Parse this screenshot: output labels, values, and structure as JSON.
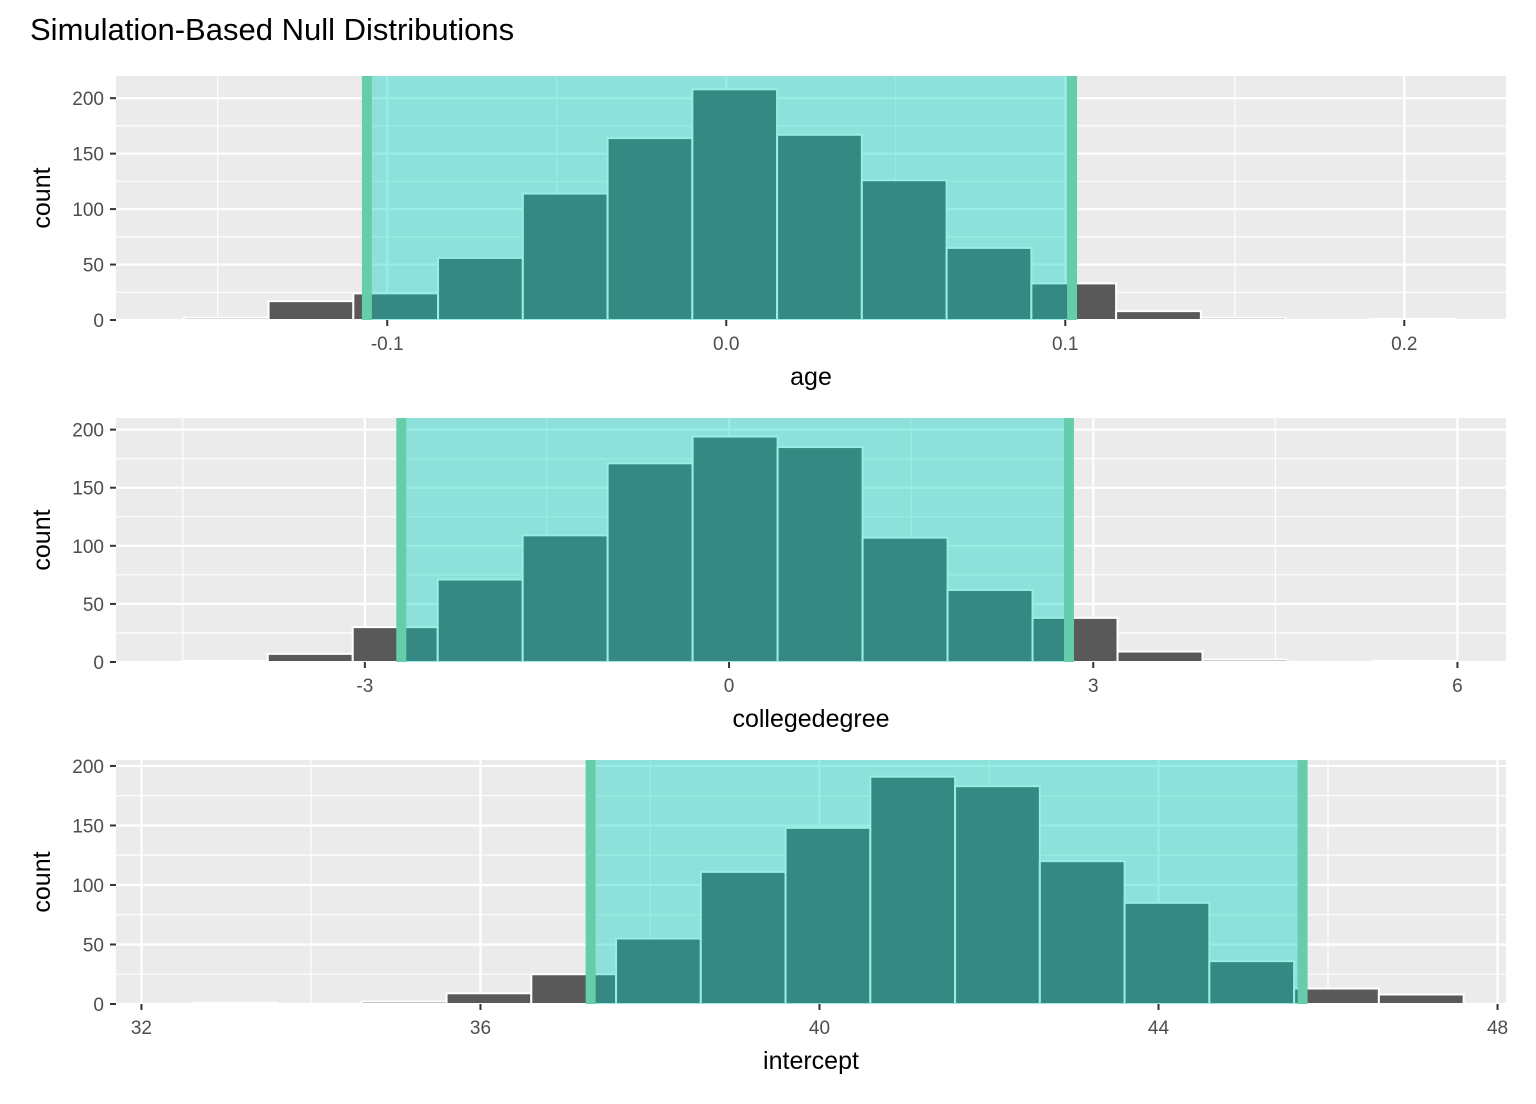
{
  "chart_data": {
    "title": "Simulation-Based Null Distributions",
    "type": "histogram",
    "colors": {
      "panel_background": "#ebebeb",
      "gridline": "#ffffff",
      "bar_fill": "#595959",
      "bar_outline": "#ffffff",
      "shade_fill": "#00d1c0",
      "shade_line": "#66cdaa",
      "tick_text": "#4d4d4d",
      "title_text": "#000000"
    },
    "panels": [
      {
        "xlabel": "age",
        "ylabel": "count",
        "xlim": [
          -0.18,
          0.23
        ],
        "ylim": [
          0,
          220
        ],
        "xticks": [
          -0.1,
          0.0,
          0.1,
          0.2
        ],
        "xtick_labels": [
          "-0.1",
          "0.0",
          "0.1",
          "0.2"
        ],
        "yticks": [
          0,
          50,
          100,
          150,
          200
        ],
        "ytick_labels": [
          "0",
          "50",
          "100",
          "150",
          "200"
        ],
        "bin_width": 0.025,
        "bin_start": -0.16,
        "counts": [
          2,
          17,
          24,
          56,
          114,
          164,
          208,
          167,
          126,
          65,
          33,
          8,
          2,
          0,
          1
        ],
        "shade_interval": [
          -0.106,
          0.102
        ]
      },
      {
        "xlabel": "collegedegree",
        "ylabel": "count",
        "xlim": [
          -5.05,
          6.4
        ],
        "ylim": [
          0,
          210
        ],
        "xticks": [
          -3,
          0,
          3,
          6
        ],
        "xtick_labels": [
          "-3",
          "0",
          "3",
          "6"
        ],
        "yticks": [
          0,
          50,
          100,
          150,
          200
        ],
        "ytick_labels": [
          "0",
          "50",
          "100",
          "150",
          "200"
        ],
        "bin_width": 0.7,
        "bin_start": -4.5,
        "counts": [
          1,
          7,
          30,
          71,
          109,
          171,
          194,
          185,
          107,
          62,
          38,
          9,
          2,
          0,
          1
        ],
        "shade_interval": [
          -2.7,
          2.8
        ]
      },
      {
        "xlabel": "intercept",
        "ylabel": "count",
        "xlim": [
          31.7,
          48.1
        ],
        "ylim": [
          0,
          205
        ],
        "xticks": [
          32,
          36,
          40,
          44,
          48
        ],
        "xtick_labels": [
          "32",
          "36",
          "40",
          "44",
          "48"
        ],
        "yticks": [
          0,
          50,
          100,
          150,
          200
        ],
        "ytick_labels": [
          "0",
          "50",
          "100",
          "150",
          "200"
        ],
        "bin_width": 1,
        "bin_start": 32.6,
        "counts": [
          1,
          0,
          2,
          9,
          25,
          55,
          111,
          148,
          191,
          183,
          120,
          85,
          36,
          13,
          8
        ],
        "shade_interval": [
          37.3,
          45.7
        ]
      }
    ]
  }
}
